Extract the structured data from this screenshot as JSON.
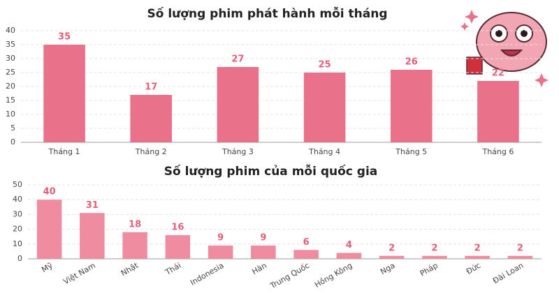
{
  "chart_data": [
    {
      "type": "bar",
      "title": "Số lượng phim phát hành mỗi tháng",
      "categories": [
        "Tháng 1",
        "Tháng 2",
        "Tháng 3",
        "Tháng 4",
        "Tháng 5",
        "Tháng 6"
      ],
      "values": [
        35,
        17,
        27,
        25,
        26,
        22
      ],
      "color": "#e9728a",
      "ylim": [
        0,
        40
      ],
      "yticks": [
        0,
        5,
        10,
        15,
        20,
        25,
        30,
        35,
        40
      ],
      "grid": true
    },
    {
      "type": "bar",
      "title": "Số lượng phim của mỗi quốc gia",
      "categories": [
        "Mỹ",
        "Việt Nam",
        "Nhật",
        "Thái",
        "Indonesia",
        "Hàn",
        "Trung Quốc",
        "Hồng Kông",
        "Nga",
        "Pháp",
        "Đức",
        "Đài Loan"
      ],
      "values": [
        40,
        31,
        18,
        16,
        9,
        9,
        6,
        4,
        2,
        2,
        2,
        2
      ],
      "color": "#ef8ca0",
      "ylim": [
        0,
        50
      ],
      "yticks": [
        0,
        10,
        20,
        30,
        40,
        50
      ],
      "grid": true
    }
  ]
}
